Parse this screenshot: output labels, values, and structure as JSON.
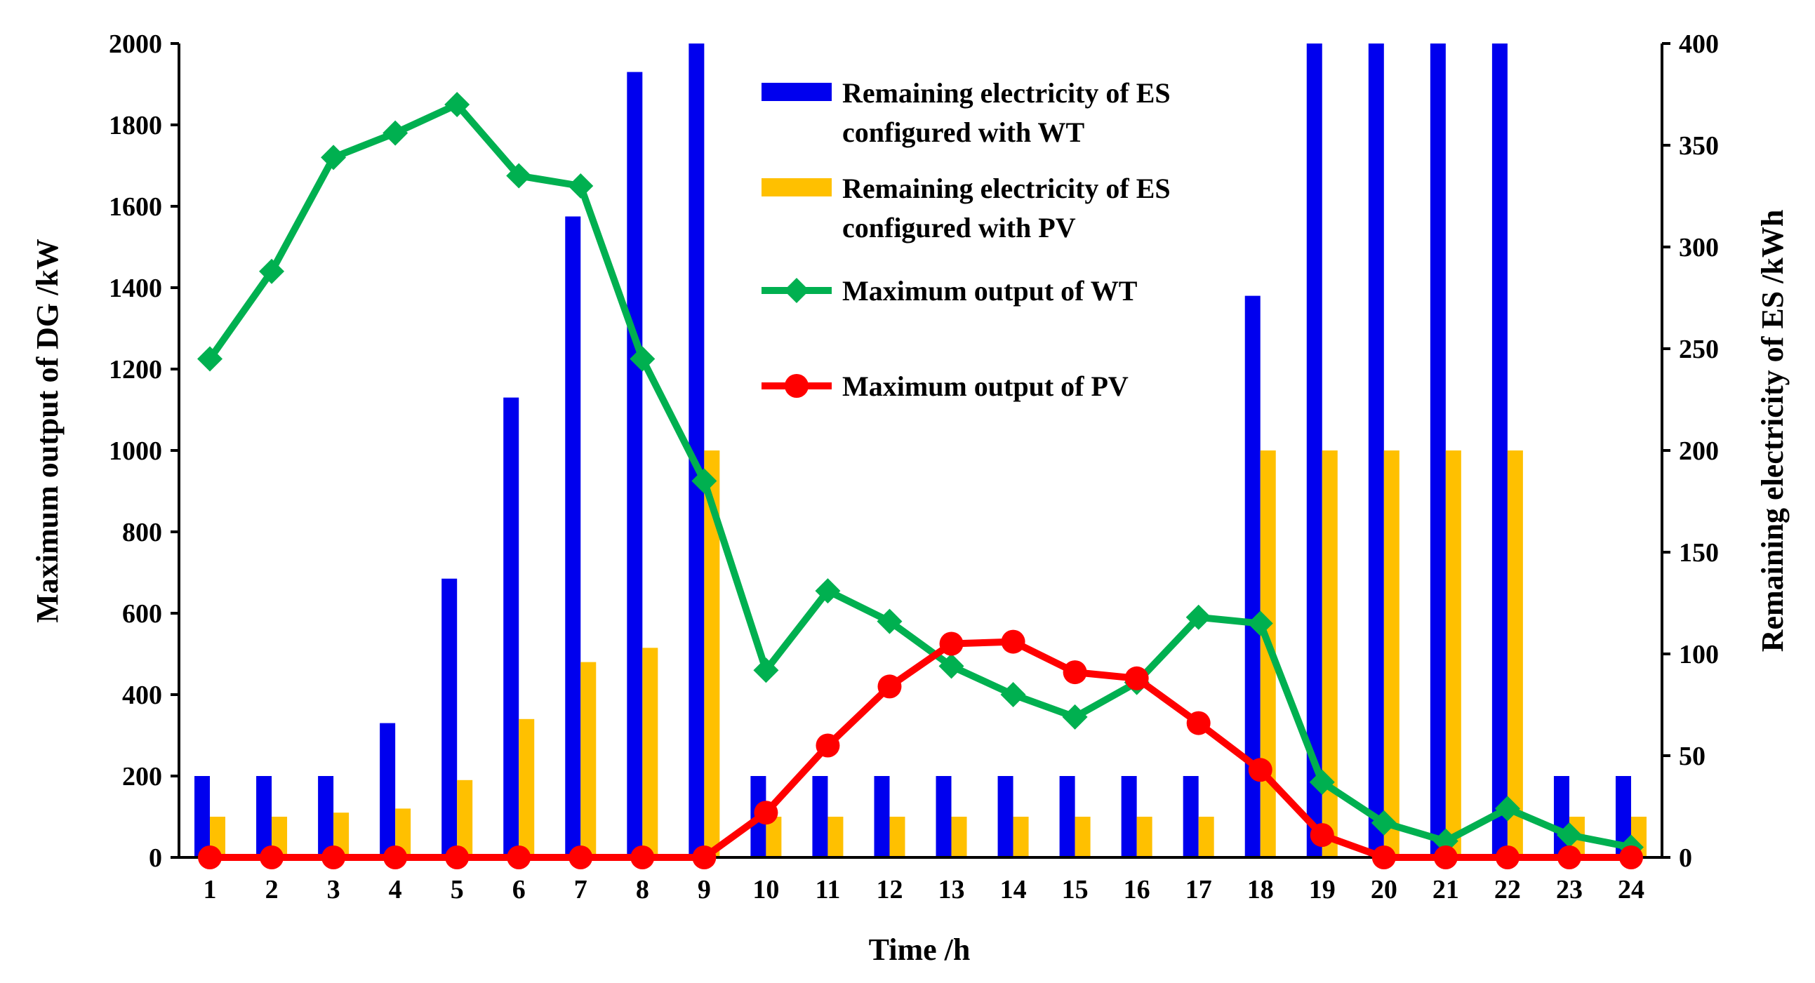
{
  "chart_data": {
    "type": "bar",
    "title": "",
    "xlabel": "Time /h",
    "ylabel": "Maximum output of DG /kW",
    "y2label": "Remaining electricity of ES /kWh",
    "categories": [
      "1",
      "2",
      "3",
      "4",
      "5",
      "6",
      "7",
      "8",
      "9",
      "10",
      "11",
      "12",
      "13",
      "14",
      "15",
      "16",
      "17",
      "18",
      "19",
      "20",
      "21",
      "22",
      "23",
      "24"
    ],
    "ylim": [
      0,
      2000
    ],
    "yticks": [
      0,
      200,
      400,
      600,
      800,
      1000,
      1200,
      1400,
      1600,
      1800,
      2000
    ],
    "y2lim": [
      0,
      400
    ],
    "y2ticks": [
      0,
      50,
      100,
      150,
      200,
      250,
      300,
      350,
      400
    ],
    "legend_position": "top-center",
    "series": [
      {
        "name": "Remaining electricity of ES configured with WT",
        "legend_lines": [
          "Remaining electricity of ES",
          "configured with WT"
        ],
        "kind": "bar",
        "axis": "right",
        "color": "#0000ee",
        "values": [
          40,
          40,
          40,
          66,
          137,
          226,
          315,
          386,
          400,
          40,
          40,
          40,
          40,
          40,
          40,
          40,
          40,
          276,
          400,
          400,
          400,
          400,
          40,
          40
        ]
      },
      {
        "name": "Remaining electricity of ES configured with PV",
        "legend_lines": [
          "Remaining electricity of ES",
          "configured with PV"
        ],
        "kind": "bar",
        "axis": "right",
        "color": "#ffc000",
        "values": [
          20,
          20,
          22,
          24,
          38,
          68,
          96,
          103,
          200,
          20,
          20,
          20,
          20,
          20,
          20,
          20,
          20,
          200,
          200,
          200,
          200,
          200,
          20,
          20
        ]
      },
      {
        "name": "Maximum output of WT",
        "legend_lines": [
          "Maximum output of WT"
        ],
        "kind": "line",
        "marker": "diamond",
        "axis": "left",
        "color": "#00b050",
        "values": [
          1225,
          1440,
          1720,
          1780,
          1850,
          1675,
          1650,
          1225,
          925,
          460,
          655,
          580,
          470,
          400,
          345,
          430,
          590,
          575,
          185,
          85,
          40,
          120,
          55,
          25
        ]
      },
      {
        "name": "Maximum output of PV",
        "legend_lines": [
          "Maximum output of PV"
        ],
        "kind": "line",
        "marker": "circle",
        "axis": "left",
        "color": "#ff0000",
        "values": [
          0,
          0,
          0,
          0,
          0,
          0,
          0,
          0,
          0,
          110,
          275,
          420,
          525,
          530,
          455,
          440,
          330,
          215,
          55,
          0,
          0,
          0,
          0,
          0
        ]
      }
    ]
  }
}
